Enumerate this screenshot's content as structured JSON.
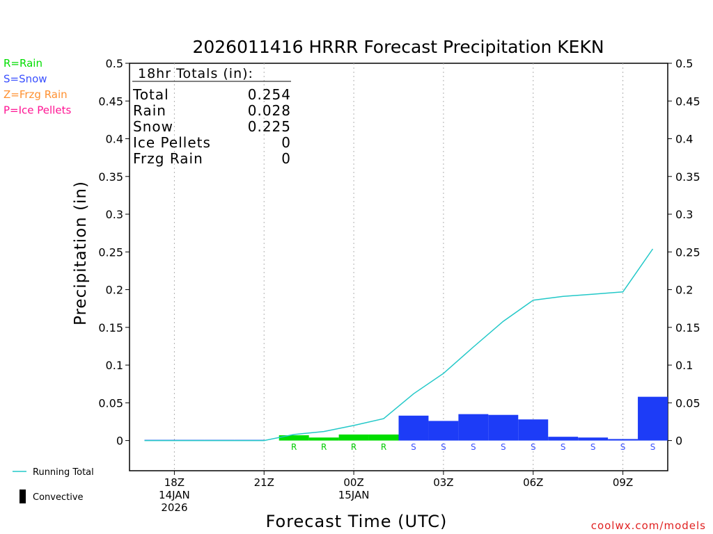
{
  "chart_data": {
    "type": "bar",
    "title": "2026011416 HRRR Forecast Precipitation KEKN",
    "xlabel": "Forecast Time (UTC)",
    "ylabel": "Precipitation (in)",
    "ylim": [
      -0.04,
      0.5
    ],
    "xlim": [
      16.5,
      34.5
    ],
    "yticks": [
      "0",
      "0.05",
      "0.1",
      "0.15",
      "0.2",
      "0.25",
      "0.3",
      "0.35",
      "0.4",
      "0.45",
      "0.5"
    ],
    "ytick_values": [
      0,
      0.05,
      0.1,
      0.15,
      0.2,
      0.25,
      0.3,
      0.35,
      0.4,
      0.45,
      0.5
    ],
    "xticks": [
      {
        "x": 18,
        "lines": [
          "18Z",
          "14JAN",
          "2026"
        ]
      },
      {
        "x": 21,
        "lines": [
          "21Z"
        ]
      },
      {
        "x": 24,
        "lines": [
          "00Z",
          "15JAN"
        ]
      },
      {
        "x": 27,
        "lines": [
          "03Z"
        ]
      },
      {
        "x": 30,
        "lines": [
          "06Z"
        ]
      },
      {
        "x": 33,
        "lines": [
          "09Z"
        ]
      }
    ],
    "bars": [
      {
        "start": 17.0,
        "end": 18.0,
        "value": 0.0,
        "type": "",
        "color": "#1d3cf7"
      },
      {
        "start": 18.0,
        "end": 19.0,
        "value": 0.0,
        "type": "",
        "color": "#1d3cf7"
      },
      {
        "start": 19.0,
        "end": 20.0,
        "value": 0.0,
        "type": "",
        "color": "#1d3cf7"
      },
      {
        "start": 20.0,
        "end": 21.0,
        "value": 0.0,
        "type": "",
        "color": "#1d3cf7"
      },
      {
        "start": 21.5,
        "end": 22.5,
        "value": 0.007,
        "type": "R",
        "color": "#00dd00"
      },
      {
        "start": 22.5,
        "end": 23.5,
        "value": 0.004,
        "type": "R",
        "color": "#00dd00"
      },
      {
        "start": 23.5,
        "end": 24.5,
        "value": 0.008,
        "type": "R",
        "color": "#00dd00"
      },
      {
        "start": 24.5,
        "end": 25.5,
        "value": 0.008,
        "type": "R",
        "color": "#00dd00"
      },
      {
        "start": 25.5,
        "end": 26.5,
        "value": 0.033,
        "type": "S",
        "color": "#1d3cf7"
      },
      {
        "start": 26.5,
        "end": 27.5,
        "value": 0.026,
        "type": "S",
        "color": "#1d3cf7"
      },
      {
        "start": 27.5,
        "end": 28.5,
        "value": 0.035,
        "type": "S",
        "color": "#1d3cf7"
      },
      {
        "start": 28.5,
        "end": 29.5,
        "value": 0.034,
        "type": "S",
        "color": "#1d3cf7"
      },
      {
        "start": 29.5,
        "end": 30.5,
        "value": 0.028,
        "type": "S",
        "color": "#1d3cf7"
      },
      {
        "start": 30.5,
        "end": 31.5,
        "value": 0.005,
        "type": "S",
        "color": "#1d3cf7"
      },
      {
        "start": 31.5,
        "end": 32.5,
        "value": 0.004,
        "type": "S",
        "color": "#1d3cf7"
      },
      {
        "start": 32.5,
        "end": 33.5,
        "value": 0.002,
        "type": "S",
        "color": "#1d3cf7"
      },
      {
        "start": 33.5,
        "end": 34.5,
        "value": 0.058,
        "type": "S",
        "color": "#1d3cf7"
      }
    ],
    "running_total": {
      "name": "Running Total",
      "color": "#22c8c8",
      "x": [
        17,
        18,
        19,
        20,
        21,
        22,
        23,
        24,
        25,
        26,
        27,
        28,
        29,
        30,
        31,
        32,
        33,
        34
      ],
      "y": [
        0,
        0,
        0,
        0,
        0,
        0.008,
        0.012,
        0.02,
        0.029,
        0.062,
        0.089,
        0.124,
        0.158,
        0.186,
        0.191,
        0.194,
        0.197,
        0.254
      ]
    },
    "precip_type_legend": [
      {
        "label": "R=Rain",
        "color": "#00dd00"
      },
      {
        "label": "S=Snow",
        "color": "#3a50ff"
      },
      {
        "label": "Z=Frzg Rain",
        "color": "#ff9030"
      },
      {
        "label": "P=Ice Pellets",
        "color": "#ff1493"
      }
    ],
    "line_legend": [
      {
        "label": "Running Total",
        "kind": "line",
        "color": "#22c8c8"
      },
      {
        "label": "Convective",
        "kind": "box",
        "color": "#000000"
      }
    ],
    "totals_box": {
      "header": "18hr Totals (in):",
      "rows": [
        {
          "label": "Total",
          "value": "0.254"
        },
        {
          "label": "Rain",
          "value": "0.028"
        },
        {
          "label": "Snow",
          "value": "0.225"
        },
        {
          "label": "Ice Pellets",
          "value": "0"
        },
        {
          "label": "Frzg Rain",
          "value": "0"
        }
      ]
    },
    "credit": "coolwx.com/models"
  }
}
